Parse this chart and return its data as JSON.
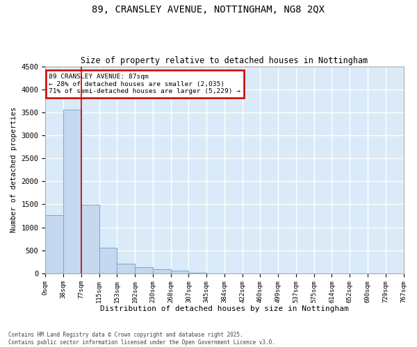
{
  "title_line1": "89, CRANSLEY AVENUE, NOTTINGHAM, NG8 2QX",
  "title_line2": "Size of property relative to detached houses in Nottingham",
  "xlabel": "Distribution of detached houses by size in Nottingham",
  "ylabel": "Number of detached properties",
  "bar_color": "#c5d8f0",
  "bar_edge_color": "#7aaed6",
  "background_color": "#daeaf8",
  "grid_color": "#ffffff",
  "fig_background": "#ffffff",
  "annotation_box_color": "#cc0000",
  "vline_color": "#cc0000",
  "vline_x": 2,
  "annotation_text": "89 CRANSLEY AVENUE: 87sqm\n← 28% of detached houses are smaller (2,035)\n71% of semi-detached houses are larger (5,229) →",
  "footer_text": "Contains HM Land Registry data © Crown copyright and database right 2025.\nContains public sector information licensed under the Open Government Licence v3.0.",
  "bin_edges": [
    0,
    1,
    2,
    3,
    4,
    5,
    6,
    7,
    8,
    9,
    10,
    11,
    12,
    13,
    14,
    15,
    16,
    17,
    18,
    19,
    20
  ],
  "bar_heights": [
    1265,
    3560,
    1490,
    550,
    210,
    130,
    95,
    60,
    10,
    0,
    5,
    0,
    0,
    0,
    0,
    0,
    0,
    0,
    0,
    0
  ],
  "ylim": [
    0,
    4500
  ],
  "yticks": [
    0,
    500,
    1000,
    1500,
    2000,
    2500,
    3000,
    3500,
    4000,
    4500
  ],
  "xtick_labels": [
    "0sqm",
    "38sqm",
    "77sqm",
    "115sqm",
    "153sqm",
    "192sqm",
    "230sqm",
    "268sqm",
    "307sqm",
    "345sqm",
    "384sqm",
    "422sqm",
    "460sqm",
    "499sqm",
    "537sqm",
    "575sqm",
    "614sqm",
    "652sqm",
    "690sqm",
    "729sqm",
    "767sqm"
  ]
}
